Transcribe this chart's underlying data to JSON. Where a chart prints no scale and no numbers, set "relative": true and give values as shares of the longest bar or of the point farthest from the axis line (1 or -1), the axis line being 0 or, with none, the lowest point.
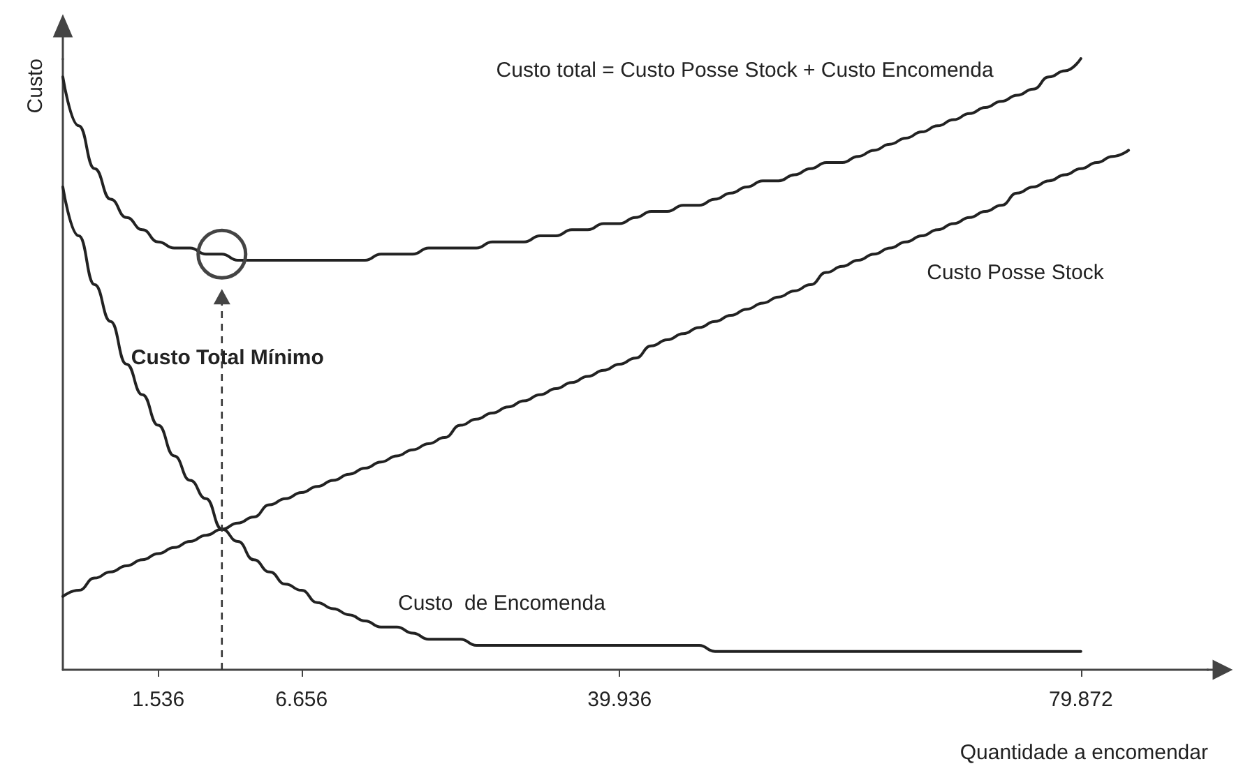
{
  "chart_data": {
    "type": "line",
    "relative": true,
    "xlabel": "Quantidade a encomendar",
    "ylabel": "Custo",
    "categories": [
      null,
      null,
      null,
      null,
      null,
      null,
      "1.536",
      null,
      null,
      null,
      null,
      null,
      null,
      null,
      null,
      "6.656",
      null,
      null,
      null,
      null,
      null,
      null,
      null,
      null,
      null,
      null,
      null,
      null,
      null,
      null,
      null,
      null,
      null,
      null,
      null,
      "39.936",
      null,
      null,
      null,
      null,
      null,
      null,
      null,
      null,
      null,
      null,
      null,
      null,
      null,
      null,
      null,
      null,
      null,
      null,
      null,
      null,
      null,
      null,
      null,
      null,
      null,
      null,
      null,
      null,
      "79.872",
      null,
      null,
      null,
      null,
      null,
      null,
      null,
      null
    ],
    "series": [
      {
        "name": "Custo total = Custo Posse Stock + Custo Encomenda",
        "color": "#222222",
        "values": [
          0.97,
          0.89,
          0.82,
          0.77,
          0.74,
          0.72,
          0.7,
          0.69,
          0.69,
          0.68,
          0.68,
          0.67,
          0.67,
          0.67,
          0.67,
          0.67,
          0.67,
          0.67,
          0.67,
          0.67,
          0.68,
          0.68,
          0.68,
          0.69,
          0.69,
          0.69,
          0.69,
          0.7,
          0.7,
          0.7,
          0.71,
          0.71,
          0.72,
          0.72,
          0.73,
          0.73,
          0.74,
          0.75,
          0.75,
          0.76,
          0.76,
          0.77,
          0.78,
          0.79,
          0.8,
          0.8,
          0.81,
          0.82,
          0.83,
          0.83,
          0.84,
          0.85,
          0.86,
          0.87,
          0.88,
          0.89,
          0.9,
          0.91,
          0.92,
          0.93,
          0.94,
          0.95,
          0.97,
          0.98,
          1.0,
          null,
          null,
          null,
          null,
          null,
          null,
          null,
          null
        ]
      },
      {
        "name": "Custo Posse Stock",
        "color": "#222222",
        "values": [
          0.12,
          0.13,
          0.15,
          0.16,
          0.17,
          0.18,
          0.19,
          0.2,
          0.21,
          0.22,
          0.23,
          0.24,
          0.25,
          0.27,
          0.28,
          0.29,
          0.3,
          0.31,
          0.32,
          0.33,
          0.34,
          0.35,
          0.36,
          0.37,
          0.38,
          0.4,
          0.41,
          0.42,
          0.43,
          0.44,
          0.45,
          0.46,
          0.47,
          0.48,
          0.49,
          0.5,
          0.51,
          0.53,
          0.54,
          0.55,
          0.56,
          0.57,
          0.58,
          0.59,
          0.6,
          0.61,
          0.62,
          0.63,
          0.65,
          0.66,
          0.67,
          0.68,
          0.69,
          0.7,
          0.71,
          0.72,
          0.73,
          0.74,
          0.75,
          0.76,
          0.78,
          0.79,
          0.8,
          0.81,
          0.82,
          0.83,
          0.84,
          0.85,
          null,
          null,
          null,
          null,
          null
        ]
      },
      {
        "name": "Custo  de Encomenda",
        "color": "#222222",
        "values": [
          0.79,
          0.71,
          0.63,
          0.57,
          0.5,
          0.45,
          0.4,
          0.35,
          0.31,
          0.28,
          0.23,
          0.21,
          0.18,
          0.16,
          0.14,
          0.13,
          0.11,
          0.1,
          0.09,
          0.08,
          0.07,
          0.07,
          0.06,
          0.05,
          0.05,
          0.05,
          0.04,
          0.04,
          0.04,
          0.04,
          0.04,
          0.04,
          0.04,
          0.04,
          0.04,
          0.04,
          0.04,
          0.04,
          0.04,
          0.04,
          0.04,
          0.03,
          0.03,
          0.03,
          0.03,
          0.03,
          0.03,
          0.03,
          0.03,
          0.03,
          0.03,
          0.03,
          0.03,
          0.03,
          0.03,
          0.03,
          0.03,
          0.03,
          0.03,
          0.03,
          0.03,
          0.03,
          0.03,
          0.03,
          0.03,
          null,
          null,
          null,
          null,
          null,
          null,
          null,
          null
        ]
      }
    ],
    "annotations": [
      "Custo Total Mínimo"
    ],
    "marker": "none",
    "line_style": "solid",
    "legend": false,
    "grid": false
  }
}
